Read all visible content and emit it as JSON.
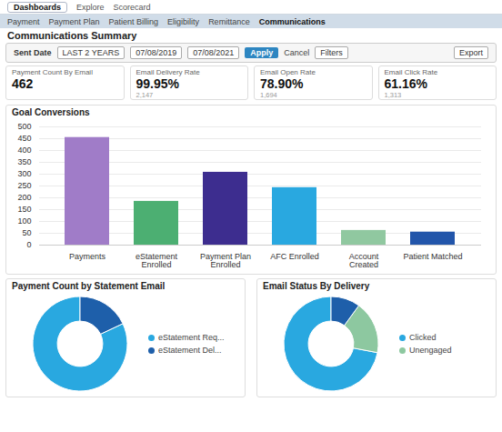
{
  "chart_data": [
    {
      "type": "bar",
      "title": "Goal Conversions",
      "categories": [
        "Payments",
        "eStatement Enrolled",
        "Payment Plan Enrolled",
        "AFC Enrolled",
        "Account Created",
        "Patient Matched"
      ],
      "values": [
        455,
        185,
        308,
        243,
        62,
        55
      ],
      "colors": [
        "#a07cc8",
        "#4caf72",
        "#3d2d8f",
        "#29a8e0",
        "#90c8a0",
        "#2255aa"
      ],
      "ylim": [
        0,
        500
      ],
      "yticks": [
        0,
        50,
        100,
        150,
        200,
        250,
        300,
        350,
        400,
        450,
        500
      ],
      "grid": true,
      "annotations": [
        [
          "Dashboards",
          "Explore",
          "Scorecard"
        ],
        [
          "Payment",
          "Payment Plan",
          "Patient Billing",
          "Eligibility",
          "Remittance",
          "Communications"
        ],
        [
          "Communications Summary"
        ],
        [
          "Sent Date",
          "LAST 2 YEARS",
          "07/08/2019",
          "07/08/2021",
          "Apply",
          "Cancel",
          "Filters",
          "Export"
        ],
        [
          "Payment Count By Email",
          "462"
        ],
        [
          "Email Delivery Rate",
          "99.95%",
          "2,147"
        ],
        [
          "Email Open Rate",
          "78.90%",
          "1,694"
        ],
        [
          "Email Click Rate",
          "61.16%",
          "1,313"
        ]
      ]
    },
    {
      "type": "pie",
      "title": "Payment Count by Statement Email",
      "categories": [
        "eStatement Req...",
        "eStatement Del..."
      ],
      "values": [
        82,
        18
      ],
      "colors": [
        "#29a8e0",
        "#1e5faa"
      ],
      "legend": "right"
    },
    {
      "type": "pie",
      "title": "Email Status By Delivery",
      "categories": [
        "Clicked",
        "Unengaged",
        null
      ],
      "values": [
        72,
        18,
        10
      ],
      "colors": [
        "#29a8e0",
        "#8dc8a0",
        "#1e5faa"
      ],
      "legend": "right"
    }
  ]
}
